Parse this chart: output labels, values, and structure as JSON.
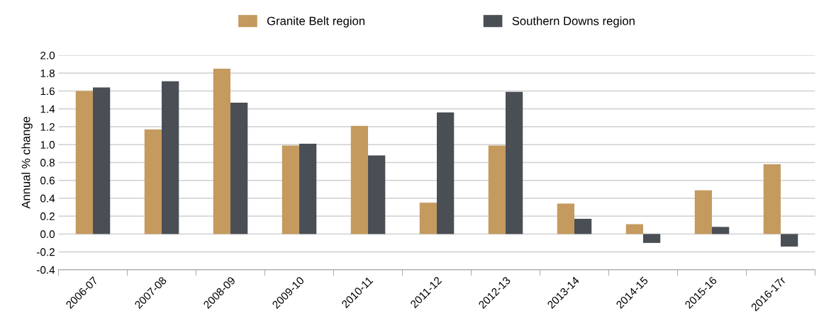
{
  "chart_data": {
    "type": "bar",
    "ylabel": "Annual % change",
    "categories": [
      "2006-07",
      "2007-08",
      "2008-09",
      "2009-10",
      "2010-11",
      "2011-12",
      "2012-13",
      "2013-14",
      "2014-15",
      "2015-16",
      "2016-17r"
    ],
    "series": [
      {
        "name": "Granite Belt region",
        "color": "#c49a5e",
        "values": [
          1.6,
          1.17,
          1.85,
          0.99,
          1.21,
          0.35,
          0.99,
          0.34,
          0.11,
          0.49,
          0.78
        ]
      },
      {
        "name": "Southern Downs region",
        "color": "#4a4e55",
        "values": [
          1.64,
          1.71,
          1.47,
          1.01,
          0.88,
          1.36,
          1.59,
          0.17,
          -0.1,
          0.08,
          -0.14
        ]
      }
    ],
    "ylim": [
      -0.4,
      2.0
    ],
    "yticks": [
      {
        "value": -0.4,
        "label": "-0.4"
      },
      {
        "value": -0.2,
        "label": "-0.2"
      },
      {
        "value": 0,
        "label": "0.0"
      },
      {
        "value": 0.2,
        "label": "0.2"
      },
      {
        "value": 0.4,
        "label": "0.4"
      },
      {
        "value": 0.6,
        "label": "0.6"
      },
      {
        "value": 0.8,
        "label": "0.8"
      },
      {
        "value": 1.0,
        "label": "1.0"
      },
      {
        "value": 1.2,
        "label": "1.2"
      },
      {
        "value": 1.4,
        "label": "1.4"
      },
      {
        "value": 1.6,
        "label": "1.6"
      },
      {
        "value": 1.8,
        "label": "1.8"
      },
      {
        "value": 2.0,
        "label": "2.0"
      }
    ],
    "grid": "y",
    "legend": "top"
  }
}
